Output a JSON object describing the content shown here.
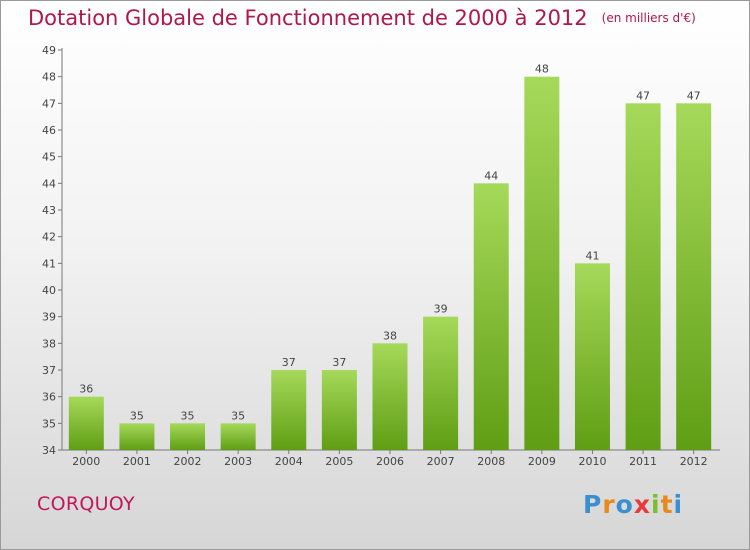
{
  "chart_data": {
    "type": "bar",
    "title": "Dotation Globale de Fonctionnement de 2000 à 2012",
    "subtitle": "(en milliers d'€)",
    "categories": [
      "2000",
      "2001",
      "2002",
      "2003",
      "2004",
      "2005",
      "2006",
      "2007",
      "2008",
      "2009",
      "2010",
      "2011",
      "2012"
    ],
    "values": [
      36,
      35,
      35,
      35,
      37,
      37,
      38,
      39,
      44,
      48,
      41,
      47,
      47
    ],
    "ylim": [
      34,
      49
    ],
    "yticks": [
      34,
      35,
      36,
      37,
      38,
      39,
      40,
      41,
      42,
      43,
      44,
      45,
      46,
      47,
      48,
      49
    ],
    "grid": false,
    "bar_color_top": "#a6d95a",
    "bar_color_bottom": "#5f9e14"
  },
  "commune": "CORQUOY",
  "logo": {
    "letters": [
      "P",
      "r",
      "o",
      "x",
      "i",
      "t",
      "i"
    ],
    "colors": [
      "#3a8fd0",
      "#e8891a",
      "#3a8fd0",
      "#e83a3a",
      "#7bbf2a",
      "#e8891a",
      "#3a8fd0"
    ]
  },
  "colors": {
    "title": "#b0174a",
    "commune": "#c2185b",
    "axis": "#777777"
  }
}
